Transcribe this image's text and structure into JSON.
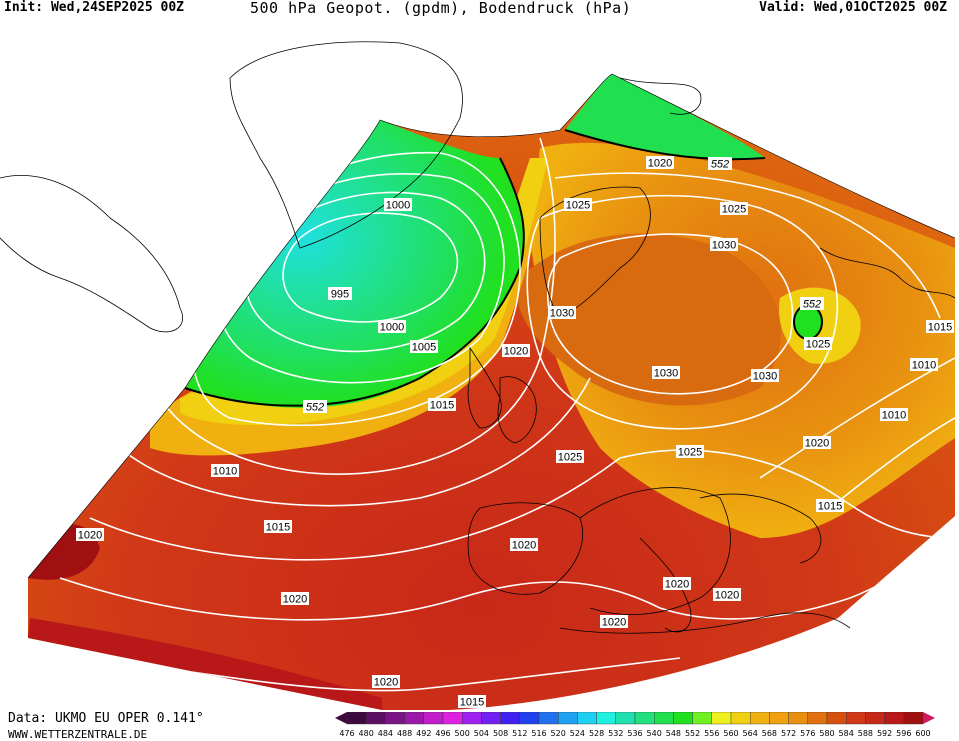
{
  "header": {
    "init": "Init: Wed,24SEP2025 00Z",
    "title": "500 hPa Geopot. (gpdm), Bodendruck (hPa)",
    "valid": "Valid: Wed,01OCT2025 00Z"
  },
  "footer": {
    "data_source": "Data: UKMO EU OPER 0.141°",
    "website": "WWW.WETTERZENTRALE.DE"
  },
  "legend": {
    "values": [
      "476",
      "480",
      "484",
      "488",
      "492",
      "496",
      "500",
      "504",
      "508",
      "512",
      "516",
      "520",
      "524",
      "528",
      "532",
      "536",
      "540",
      "548",
      "552",
      "556",
      "560",
      "564",
      "568",
      "572",
      "576",
      "580",
      "584",
      "588",
      "592",
      "596",
      "600"
    ],
    "colors": [
      "#3c0a3c",
      "#5a1060",
      "#7a1485",
      "#9a18a8",
      "#c01cc8",
      "#e020e0",
      "#a020f0",
      "#7020f0",
      "#4020f0",
      "#2040f0",
      "#2070f0",
      "#20a0f0",
      "#20d0f0",
      "#20f0e0",
      "#20e0b0",
      "#20e080",
      "#20e050",
      "#20e020",
      "#70f020",
      "#f0f020",
      "#f0d010",
      "#f0b010",
      "#f0a010",
      "#e89010",
      "#e07010",
      "#d85010",
      "#d03818",
      "#c82818",
      "#b81818",
      "#a01010",
      "#d01860"
    ]
  },
  "isobar_labels": [
    "1020",
    "1025",
    "1025",
    "1030",
    "1000",
    "995",
    "1000",
    "1005",
    "552",
    "1025",
    "1030",
    "1020",
    "552",
    "1025",
    "1015",
    "1030",
    "1030",
    "1015",
    "1010",
    "1025",
    "1020",
    "1010",
    "1010",
    "1015",
    "1020",
    "1015",
    "1020",
    "1020",
    "1020",
    "1020",
    "1020",
    "1015",
    "552"
  ]
}
